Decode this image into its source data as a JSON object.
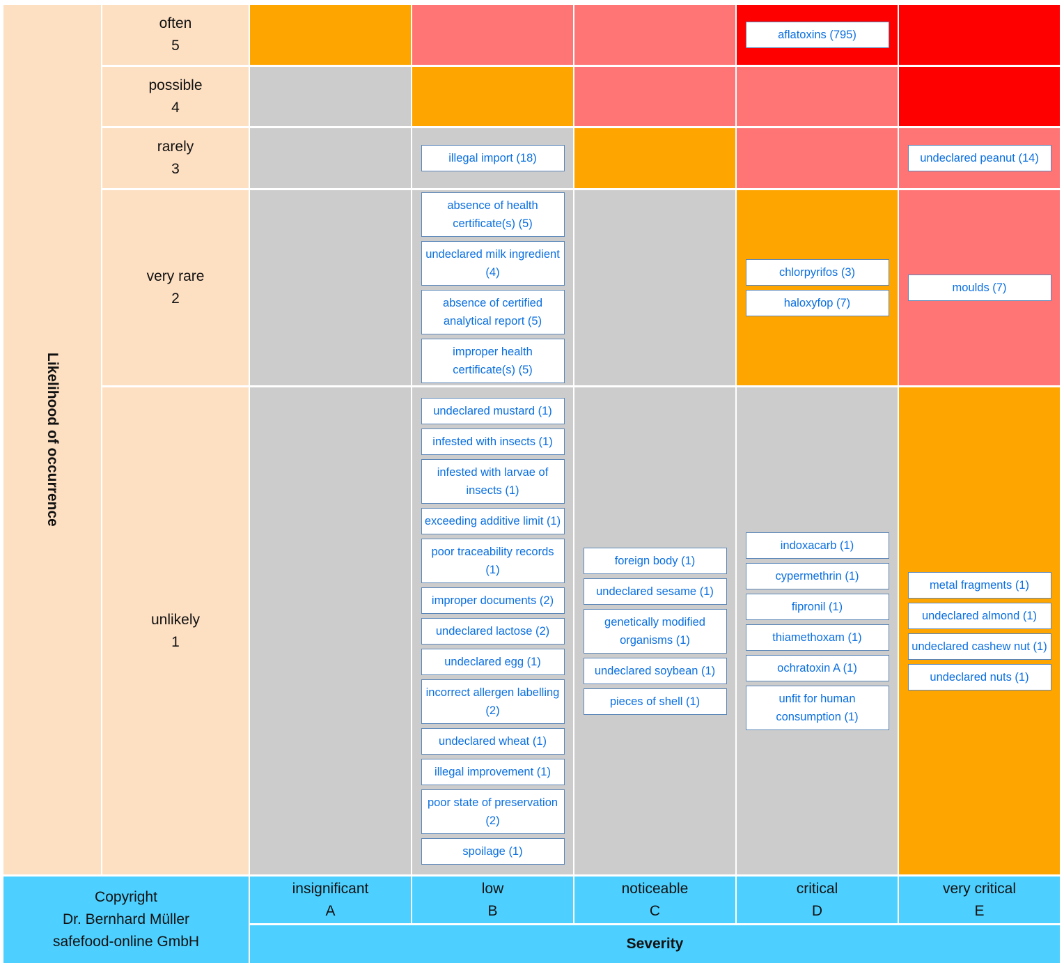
{
  "matrix": {
    "y_axis_title": "Likelihood of occurrence",
    "x_axis_title": "Severity",
    "copyright": [
      "Copyright",
      "Dr. Bernhard Müller",
      "safefood-online GmbH"
    ],
    "severity": [
      {
        "name": "insignificant",
        "code": "A"
      },
      {
        "name": "low",
        "code": "B"
      },
      {
        "name": "noticeable",
        "code": "C"
      },
      {
        "name": "critical",
        "code": "D"
      },
      {
        "name": "very critical",
        "code": "E"
      }
    ],
    "rows": [
      {
        "name": "often",
        "level": 5,
        "cells": [
          {
            "color": "#FFA500",
            "items": []
          },
          {
            "color": "#FF7575",
            "items": []
          },
          {
            "color": "#FF7575",
            "items": []
          },
          {
            "color": "#FF0000",
            "items": [
              "aflatoxins (795)"
            ]
          },
          {
            "color": "#FF0000",
            "items": []
          }
        ]
      },
      {
        "name": "possible",
        "level": 4,
        "cells": [
          {
            "color": "#CCCCCC",
            "items": []
          },
          {
            "color": "#FFA500",
            "items": []
          },
          {
            "color": "#FF7575",
            "items": []
          },
          {
            "color": "#FF7575",
            "items": []
          },
          {
            "color": "#FF0000",
            "items": []
          }
        ]
      },
      {
        "name": "rarely",
        "level": 3,
        "cells": [
          {
            "color": "#CCCCCC",
            "items": []
          },
          {
            "color": "#CCCCCC",
            "items": [
              "illegal import (18)"
            ]
          },
          {
            "color": "#FFA500",
            "items": []
          },
          {
            "color": "#FF7575",
            "items": []
          },
          {
            "color": "#FF7575",
            "items": [
              "undeclared peanut (14)"
            ]
          }
        ]
      },
      {
        "name": "very rare",
        "level": 2,
        "cells": [
          {
            "color": "#CCCCCC",
            "items": []
          },
          {
            "color": "#CCCCCC",
            "items": [
              "absence of health certificate(s) (5)",
              "undeclared milk ingredient (4)",
              "absence of certified analytical report (5)",
              "improper health certificate(s) (5)"
            ]
          },
          {
            "color": "#CCCCCC",
            "items": []
          },
          {
            "color": "#FFA500",
            "items": [
              "chlorpyrifos (3)",
              "haloxyfop (7)"
            ]
          },
          {
            "color": "#FF7575",
            "items": [
              "moulds (7)"
            ]
          }
        ]
      },
      {
        "name": "unlikely",
        "level": 1,
        "cells": [
          {
            "color": "#CCCCCC",
            "items": []
          },
          {
            "color": "#CCCCCC",
            "items": [
              "undeclared mustard (1)",
              "infested with insects (1)",
              "infested with larvae of insects (1)",
              "exceeding additive limit (1)",
              "poor traceability records (1)",
              "improper documents (2)",
              "undeclared lactose (2)",
              "undeclared egg (1)",
              "incorrect allergen labelling (2)",
              "undeclared wheat (1)",
              "illegal improvement (1)",
              "poor state of preservation (2)",
              "spoilage (1)"
            ]
          },
          {
            "color": "#CCCCCC",
            "items": [
              "foreign body (1)",
              "undeclared sesame (1)",
              "genetically modified organisms (1)",
              "undeclared soybean (1)",
              "pieces of shell (1)"
            ]
          },
          {
            "color": "#CCCCCC",
            "items": [
              "indoxacarb (1)",
              "cypermethrin (1)",
              "fipronil (1)",
              "thiamethoxam (1)",
              "ochratoxin A (1)",
              "unfit for human consumption (1)"
            ]
          },
          {
            "color": "#FFA500",
            "items": [
              "metal fragments (1)",
              "undeclared almond (1)",
              "undeclared cashew nut (1)",
              "undeclared nuts (1)"
            ]
          }
        ]
      }
    ]
  }
}
